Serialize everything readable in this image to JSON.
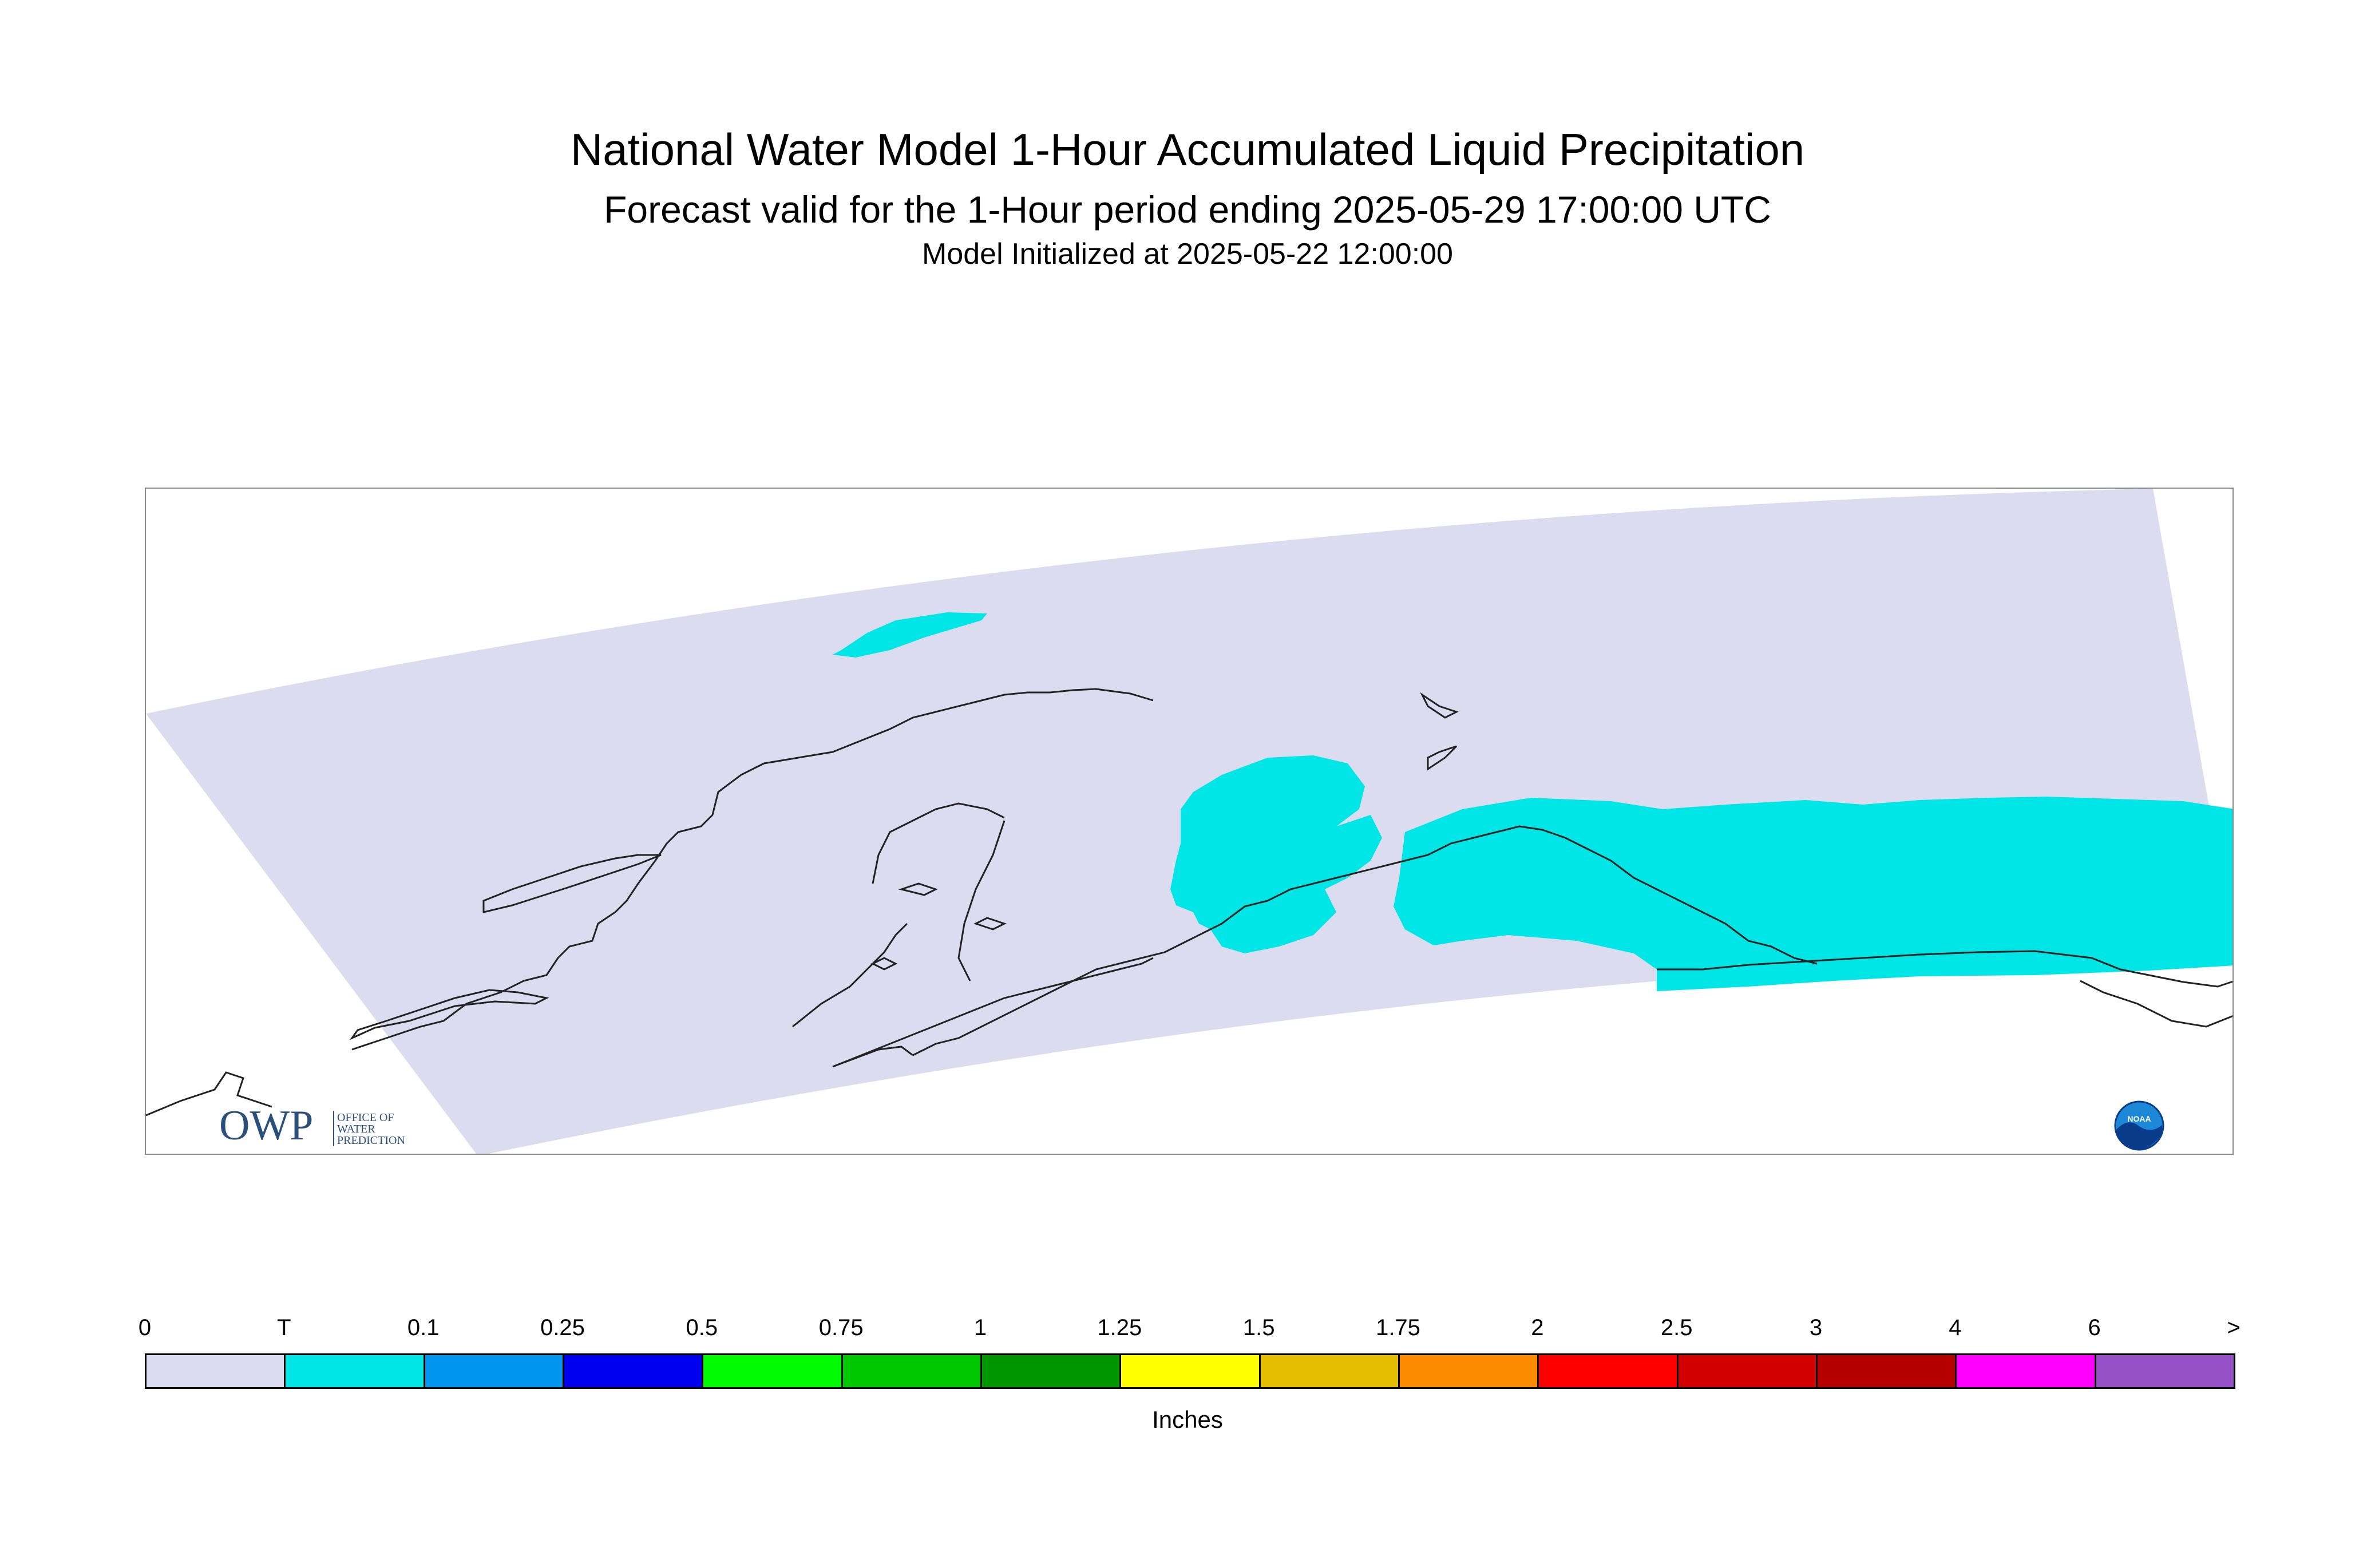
{
  "title": "National Water Model 1-Hour Accumulated Liquid Precipitation",
  "subtitle": "Forecast valid for the 1-Hour period ending 2025-05-29 17:00:00 UTC",
  "init_line": "Model Initialized at 2025-05-22 12:00:00",
  "logos": {
    "owp_main": "OWP",
    "owp_line1": "OFFICE OF",
    "owp_line2": "WATER",
    "owp_line3": "PREDICTION",
    "noaa": "NOAA"
  },
  "legend": {
    "units": "Inches",
    "tick_labels": [
      "0",
      "T",
      "0.1",
      "0.25",
      "0.5",
      "0.75",
      "1",
      "1.25",
      "1.5",
      "1.75",
      "2",
      "2.5",
      "3",
      "4",
      "6",
      ">"
    ],
    "colors": [
      "#dcdcf0",
      "#00e6e6",
      "#0096f0",
      "#0000f0",
      "#00fa00",
      "#00c800",
      "#009600",
      "#ffff00",
      "#e6be00",
      "#ff8c00",
      "#ff0000",
      "#d20000",
      "#b40000",
      "#ff00ff",
      "#9650c8"
    ]
  },
  "map": {
    "domain_color": "#dcdcf0",
    "precip_color": "#00e6e6",
    "coastline_color": "#222222"
  }
}
